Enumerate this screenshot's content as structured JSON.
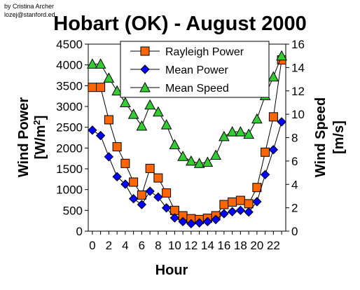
{
  "credit": {
    "line1": "by Cristina Archer",
    "line2": "lozej@stanford.ed"
  },
  "colors": {
    "rayleigh": "#ff6600",
    "mean_power": "#0000ff",
    "mean_speed": "#33cc33",
    "lines": "#000000"
  },
  "chart_data": {
    "type": "line",
    "title": "Hobart (OK) - August 2000",
    "xlabel": "Hour",
    "ylabel_left_main": "Wind Power",
    "ylabel_left_unit": "[W/m",
    "ylabel_left_sup": "2",
    "ylabel_left_close": "]",
    "ylabel_right_main": "Wind Speed",
    "ylabel_right_unit": "[m/s]",
    "xlim": [
      -0.5,
      23.5
    ],
    "xticks": [
      0,
      2,
      4,
      6,
      8,
      10,
      12,
      14,
      16,
      18,
      20,
      22
    ],
    "xtick_labels": [
      "0",
      "2",
      "4",
      "6",
      "8",
      "10",
      "12",
      "14",
      "16",
      "18",
      "20",
      "22"
    ],
    "ylim_left": [
      0,
      4500
    ],
    "yticks_left": [
      0,
      500,
      1000,
      1500,
      2000,
      2500,
      3000,
      3500,
      4000,
      4500
    ],
    "yticks_left_labels": [
      "0",
      "500",
      "1000",
      "1500",
      "2000",
      "2500",
      "3000",
      "3500",
      "4000",
      "4500"
    ],
    "ylim_right": [
      0,
      16
    ],
    "yticks_right": [
      0,
      2,
      4,
      6,
      8,
      10,
      12,
      14,
      16
    ],
    "yticks_right_labels": [
      "0",
      "2",
      "4",
      "6",
      "8",
      "10",
      "12",
      "14",
      "16"
    ],
    "legend_position": "top-right",
    "grid": false,
    "x": [
      0,
      1,
      2,
      3,
      4,
      5,
      6,
      7,
      8,
      9,
      10,
      11,
      12,
      13,
      14,
      15,
      16,
      17,
      18,
      19,
      20,
      21,
      22,
      23
    ],
    "series": [
      {
        "name": "Rayleigh Power",
        "axis": "left",
        "marker": "square",
        "values": [
          3460,
          3460,
          2680,
          2030,
          1630,
          1180,
          870,
          1510,
          1280,
          920,
          500,
          370,
          300,
          280,
          310,
          370,
          640,
          700,
          740,
          660,
          1050,
          1900,
          2750,
          4120
        ]
      },
      {
        "name": "Mean Power",
        "axis": "left",
        "marker": "diamond",
        "values": [
          2430,
          2300,
          1790,
          1310,
          1130,
          780,
          640,
          960,
          820,
          560,
          320,
          230,
          180,
          200,
          230,
          280,
          420,
          470,
          500,
          460,
          710,
          1360,
          1960,
          2630
        ]
      },
      {
        "name": "Mean Speed",
        "axis": "right",
        "marker": "triangle",
        "values": [
          14.3,
          14.3,
          13.1,
          12.0,
          11.0,
          10.0,
          9.0,
          10.8,
          10.2,
          9.1,
          7.4,
          6.4,
          6.0,
          5.8,
          5.9,
          6.5,
          8.1,
          8.5,
          8.5,
          8.3,
          9.6,
          11.6,
          13.2,
          15.0
        ]
      }
    ]
  }
}
